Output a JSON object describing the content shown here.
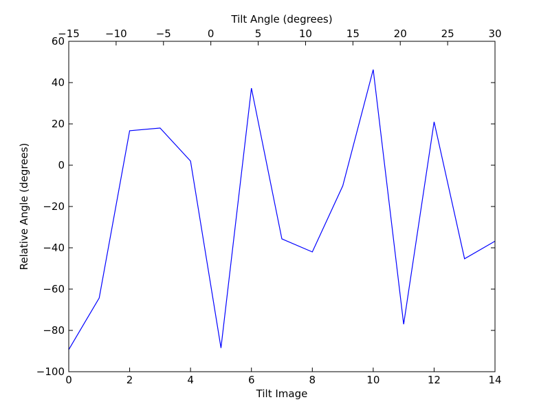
{
  "chart_data": {
    "type": "line",
    "xlabel": "Tilt Image",
    "ylabel": "Relative Angle (degrees)",
    "x2label": "Tilt Angle (degrees)",
    "x": [
      0,
      1,
      2,
      3,
      4,
      5,
      6,
      7,
      8,
      9,
      10,
      11,
      12,
      13,
      14
    ],
    "series": [
      {
        "color": "#0000ff",
        "values": [
          -89.3,
          -64.3,
          16.7,
          18,
          2,
          -88.5,
          37.3,
          -35.7,
          -42,
          -10,
          46.3,
          -77,
          21,
          -45.3,
          -36.8
        ]
      }
    ],
    "xlim": [
      0,
      14
    ],
    "xticks": [
      0,
      2,
      4,
      6,
      8,
      10,
      12,
      14
    ],
    "x2lim": [
      -15,
      30
    ],
    "x2ticks": [
      {
        "value": -15,
        "label": "−15"
      },
      {
        "value": -10,
        "label": "−10"
      },
      {
        "value": -5,
        "label": "−5"
      },
      0,
      5,
      10,
      15,
      20,
      25,
      30
    ],
    "ylim": [
      -100,
      60
    ],
    "yticks": [
      {
        "value": -100,
        "label": "−100"
      },
      {
        "value": -80,
        "label": "−80"
      },
      {
        "value": -60,
        "label": "−60"
      },
      {
        "value": -40,
        "label": "−40"
      },
      {
        "value": -20,
        "label": "−20"
      },
      0,
      20,
      40,
      60
    ]
  }
}
